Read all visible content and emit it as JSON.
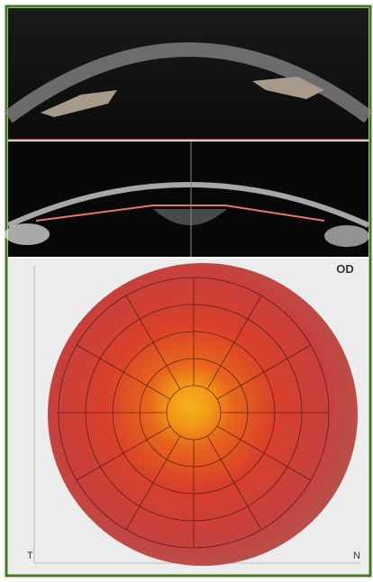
{
  "labels": {
    "eye": "OD",
    "temporal": "T",
    "nasal": "N"
  }
}
